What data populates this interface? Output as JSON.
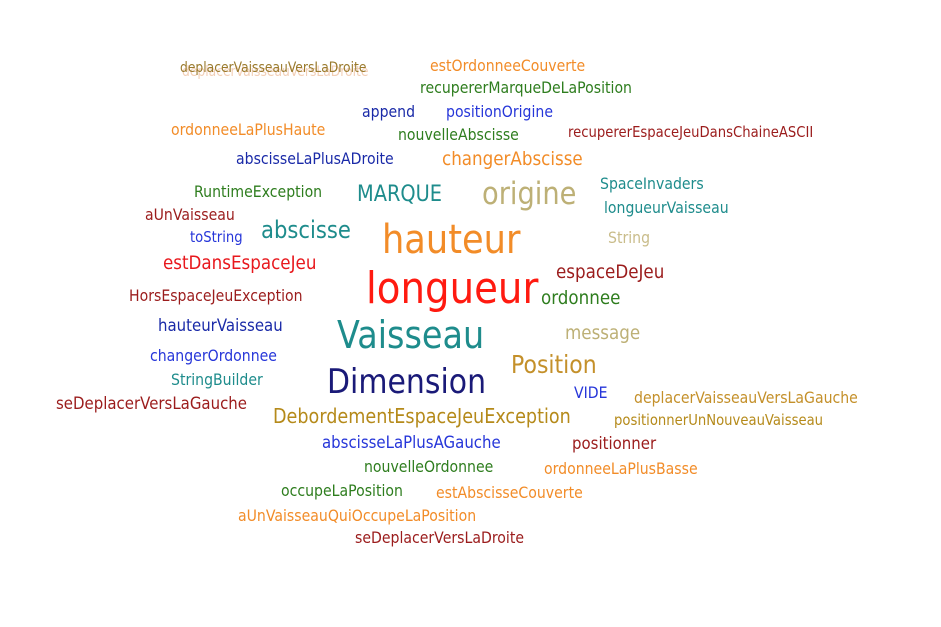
{
  "words": [
    {
      "text": "deplacerVaisseauVersLaDroite",
      "color": "#e8a87c"
    },
    {
      "text": "deplacerVaisseauVersLaDroite",
      "color": "#9a7a2c"
    },
    {
      "text": "estOrdonneeCouverte",
      "color": "#f28c28"
    },
    {
      "text": "recupererMarqueDeLaPosition",
      "color": "#2e7d1e"
    },
    {
      "text": "append",
      "color": "#1a2aa8"
    },
    {
      "text": "positionOrigine",
      "color": "#2636d9"
    },
    {
      "text": "ordonneeLaPlusHaute",
      "color": "#f28c28"
    },
    {
      "text": "nouvelleAbscisse",
      "color": "#2e7d1e"
    },
    {
      "text": "recupererEspaceJeuDansChaineASCII",
      "color": "#9b1c1c"
    },
    {
      "text": "abscisseLaPlusADroite",
      "color": "#1a2aa8"
    },
    {
      "text": "changerAbscisse",
      "color": "#f28c28"
    },
    {
      "text": "RuntimeException",
      "color": "#2e7d1e"
    },
    {
      "text": "MARQUE",
      "color": "#1e8c8c"
    },
    {
      "text": "origine",
      "color": "#bdb076"
    },
    {
      "text": "SpaceInvaders",
      "color": "#1e8c8c"
    },
    {
      "text": "longueurVaisseau",
      "color": "#1e8c8c"
    },
    {
      "text": "aUnVaisseau",
      "color": "#9b1c1c"
    },
    {
      "text": "toString",
      "color": "#2636d9"
    },
    {
      "text": "abscisse",
      "color": "#1e8c8c"
    },
    {
      "text": "hauteur",
      "color": "#f28c28"
    },
    {
      "text": "String",
      "color": "#c9bc8a"
    },
    {
      "text": "estDansEspaceJeu",
      "color": "#e8181d"
    },
    {
      "text": "espaceDeJeu",
      "color": "#9b1c1c"
    },
    {
      "text": "HorsEspaceJeuException",
      "color": "#9b1c1c"
    },
    {
      "text": "longueur",
      "color": "#ff1a10"
    },
    {
      "text": "ordonnee",
      "color": "#2e7d1e"
    },
    {
      "text": "hauteurVaisseau",
      "color": "#1a2aa8"
    },
    {
      "text": "Vaisseau",
      "color": "#1e8c8c"
    },
    {
      "text": "message",
      "color": "#bdb076"
    },
    {
      "text": "changerOrdonnee",
      "color": "#2636d9"
    },
    {
      "text": "Position",
      "color": "#c4902a"
    },
    {
      "text": "StringBuilder",
      "color": "#1e8c8c"
    },
    {
      "text": "Dimension",
      "color": "#1a1a78"
    },
    {
      "text": "VIDE",
      "color": "#2636d9"
    },
    {
      "text": "deplacerVaisseauVersLaGauche",
      "color": "#c4902a"
    },
    {
      "text": "seDeplacerVersLaGauche",
      "color": "#9b1c1c"
    },
    {
      "text": "DebordementEspaceJeuException",
      "color": "#b58a1a"
    },
    {
      "text": "positionnerUnNouveauVaisseau",
      "color": "#b58a1a"
    },
    {
      "text": "abscisseLaPlusAGauche",
      "color": "#2636d9"
    },
    {
      "text": "positionner",
      "color": "#9b1c1c"
    },
    {
      "text": "nouvelleOrdonnee",
      "color": "#2e7d1e"
    },
    {
      "text": "ordonneeLaPlusBasse",
      "color": "#f28c28"
    },
    {
      "text": "occupeLaPosition",
      "color": "#2e7d1e"
    },
    {
      "text": "estAbscisseCouverte",
      "color": "#f28c28"
    },
    {
      "text": "aUnVaisseauQuiOccupeLaPosition",
      "color": "#f28c28"
    },
    {
      "text": "seDeplacerVersLaDroite",
      "color": "#9b1c1c"
    }
  ]
}
